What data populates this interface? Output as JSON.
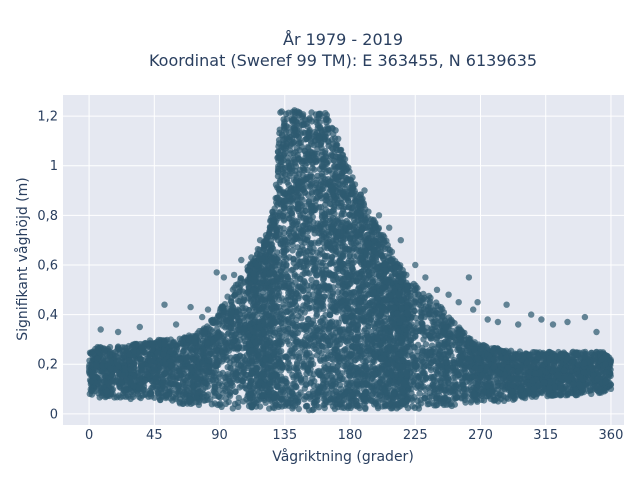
{
  "chart_data": {
    "type": "scatter",
    "title": "År 1979 - 2019",
    "subtitle": "Koordinat (Sweref 99 TM): E 363455, N 6139635",
    "xlabel": "Vågriktning (grader)",
    "ylabel": "Signifikant våghöjd (m)",
    "xlim": [
      -18,
      369
    ],
    "ylim": [
      -0.045,
      1.285
    ],
    "x_ticks": [
      0,
      45,
      90,
      135,
      180,
      225,
      270,
      315,
      360
    ],
    "x_tick_labels": [
      "0",
      "45",
      "90",
      "135",
      "180",
      "225",
      "270",
      "315",
      "360"
    ],
    "y_ticks": [
      0,
      0.2,
      0.4,
      0.6,
      0.8,
      1.0,
      1.2
    ],
    "y_tick_labels": [
      "0",
      "0,2",
      "0,4",
      "0,6",
      "0,8",
      "1",
      "1,2"
    ],
    "grid": true,
    "legend": "none",
    "marker_color": "#2e5a70",
    "envelope": {
      "direction": [
        0,
        5,
        15,
        30,
        45,
        60,
        75,
        85,
        95,
        105,
        115,
        122,
        128,
        132,
        140,
        150,
        160,
        168,
        175,
        182,
        190,
        200,
        210,
        220,
        230,
        240,
        250,
        260,
        270,
        285,
        300,
        315,
        330,
        345,
        355,
        360
      ],
      "height_max": [
        0.25,
        0.27,
        0.27,
        0.28,
        0.3,
        0.3,
        0.33,
        0.38,
        0.47,
        0.55,
        0.65,
        0.72,
        0.85,
        1.22,
        1.23,
        1.22,
        1.22,
        1.2,
        1.05,
        0.95,
        0.85,
        0.75,
        0.65,
        0.55,
        0.5,
        0.45,
        0.38,
        0.32,
        0.28,
        0.26,
        0.25,
        0.25,
        0.25,
        0.25,
        0.25,
        0.22
      ],
      "height_min": [
        0.08,
        0.06,
        0.06,
        0.06,
        0.05,
        0.04,
        0.03,
        0.03,
        0.02,
        0.02,
        0.02,
        0.02,
        0.02,
        0.02,
        0.01,
        0.01,
        0.02,
        0.02,
        0.02,
        0.02,
        0.02,
        0.02,
        0.02,
        0.02,
        0.02,
        0.03,
        0.03,
        0.04,
        0.05,
        0.05,
        0.06,
        0.07,
        0.07,
        0.08,
        0.08,
        0.1
      ]
    },
    "outliers": {
      "x": [
        8,
        20,
        35,
        52,
        60,
        70,
        78,
        82,
        88,
        93,
        100,
        105,
        112,
        118,
        190,
        200,
        207,
        215,
        225,
        232,
        240,
        248,
        255,
        262,
        265,
        268,
        275,
        282,
        288,
        296,
        305,
        312,
        320,
        330,
        342,
        350
      ],
      "y": [
        0.34,
        0.33,
        0.35,
        0.44,
        0.36,
        0.43,
        0.39,
        0.42,
        0.57,
        0.55,
        0.56,
        0.62,
        0.63,
        0.7,
        0.9,
        0.8,
        0.75,
        0.7,
        0.6,
        0.55,
        0.5,
        0.48,
        0.45,
        0.55,
        0.42,
        0.45,
        0.38,
        0.37,
        0.44,
        0.36,
        0.4,
        0.38,
        0.36,
        0.37,
        0.39,
        0.33
      ]
    }
  }
}
